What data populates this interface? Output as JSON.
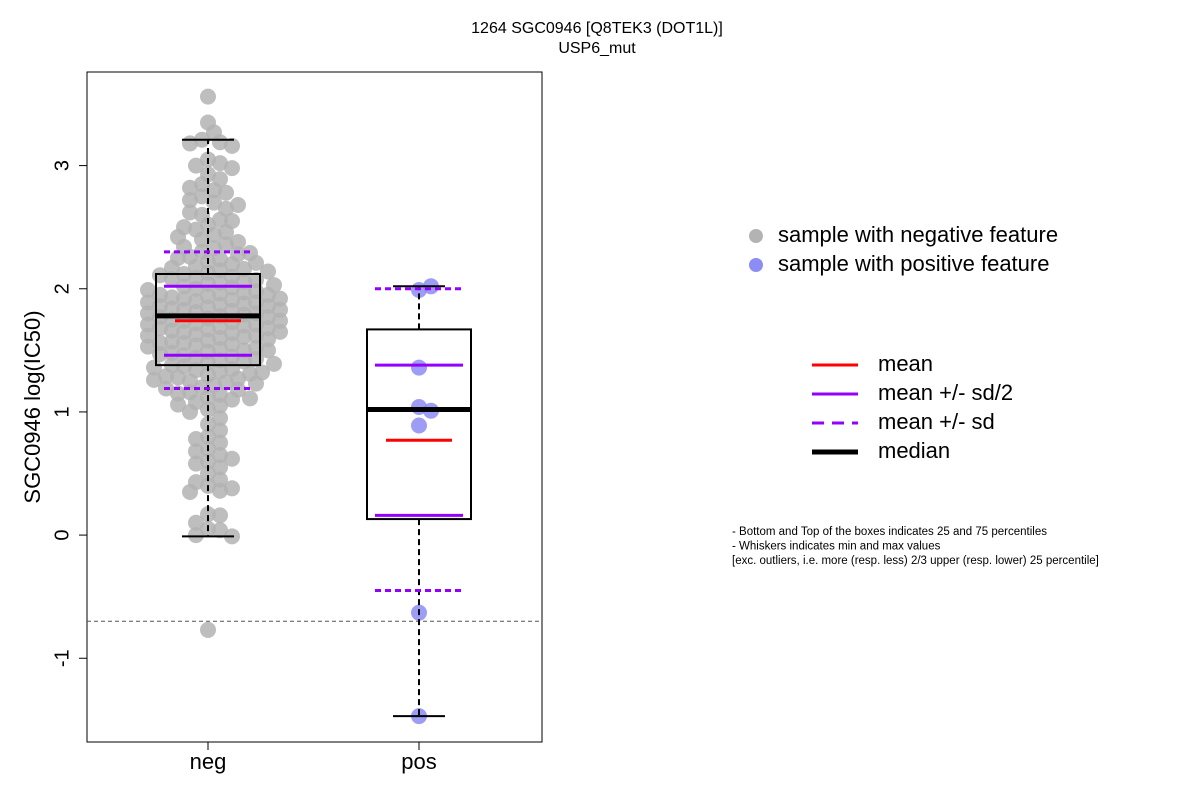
{
  "chart_data": {
    "type": "box",
    "title": "1264 SGC0946 [Q8TEK3 (DOT1L)]",
    "subtitle": "USP6_mut",
    "y_label": "SGC0946 log(IC50)",
    "categories": [
      "neg",
      "pos"
    ],
    "ylim": [
      -1.68,
      3.76
    ],
    "yticks": [
      -1,
      0,
      1,
      2,
      3
    ],
    "reference_line": -0.7,
    "series": [
      {
        "name": "sample with negative feature",
        "color": "#b3b3b3",
        "values": [
          3.56,
          3.35,
          3.27,
          3.21,
          3.19,
          3.18,
          3.16,
          3.05,
          3.02,
          3.0,
          2.98,
          2.93,
          2.89,
          2.85,
          2.82,
          2.8,
          2.78,
          2.75,
          2.72,
          2.7,
          1.02,
          1.05,
          1.08,
          1.1,
          1.12,
          1.14,
          1.16,
          1.18,
          1.2,
          1.22,
          1.24,
          1.25,
          1.27,
          1.28,
          1.3,
          1.31,
          1.33,
          1.34,
          1.35,
          1.37,
          1.38,
          1.4,
          1.41,
          1.42,
          1.44,
          1.45,
          1.46,
          1.48,
          1.49,
          1.5,
          1.51,
          1.52,
          1.54,
          1.55,
          1.56,
          1.57,
          1.58,
          1.6,
          1.61,
          1.62,
          1.63,
          1.64,
          1.65,
          1.66,
          1.67,
          1.68,
          1.69,
          1.7,
          1.71,
          1.72,
          1.73,
          1.74,
          1.75,
          1.76,
          1.77,
          1.78,
          1.79,
          1.8,
          1.81,
          1.82,
          1.83,
          1.84,
          1.85,
          1.86,
          1.87,
          1.88,
          1.89,
          1.9,
          1.91,
          1.92,
          1.93,
          1.94,
          1.95,
          1.96,
          1.97,
          1.98,
          2.0,
          2.01,
          2.02,
          2.04,
          2.05,
          2.06,
          2.08,
          2.09,
          2.1,
          2.12,
          2.13,
          2.15,
          2.16,
          2.18,
          2.2,
          2.22,
          2.24,
          2.26,
          2.28,
          2.3,
          2.33,
          2.36,
          2.4,
          2.44,
          2.48,
          2.52,
          2.56,
          2.6,
          2.65,
          0.95,
          1.0,
          1.06,
          1.11,
          1.15,
          1.19,
          1.23,
          1.26,
          1.29,
          1.32,
          1.36,
          1.39,
          1.43,
          1.47,
          1.5,
          1.53,
          1.56,
          1.59,
          1.62,
          1.65,
          1.68,
          1.71,
          1.74,
          1.77,
          1.8,
          1.83,
          1.86,
          1.89,
          1.92,
          1.95,
          1.99,
          2.03,
          2.07,
          2.11,
          2.14,
          2.17,
          2.21,
          2.25,
          2.29,
          2.34,
          2.38,
          2.42,
          2.46,
          2.5,
          2.55,
          2.62,
          2.68,
          0.9,
          0.85,
          0.8,
          0.78,
          0.75,
          0.7,
          0.68,
          0.65,
          0.62,
          0.6,
          0.58,
          0.55,
          0.5,
          0.45,
          0.43,
          0.4,
          0.38,
          0.36,
          0.35,
          0.17,
          0.16,
          0.1,
          0.05,
          0.04,
          0.0,
          -0.01,
          -0.77
        ],
        "q1": 1.38,
        "median": 1.78,
        "q3": 2.12,
        "mean": 1.74,
        "mean_minus_half_sd": 1.46,
        "mean_plus_half_sd": 2.02,
        "mean_minus_sd": 1.19,
        "mean_plus_sd": 2.3,
        "whisker_low": -0.01,
        "whisker_high": 3.21
      },
      {
        "name": "sample with positive feature",
        "color": "#8c8cf5",
        "values": [
          1.99,
          2.02,
          1.36,
          1.04,
          1.01,
          0.89,
          -0.63,
          -1.47
        ],
        "q1": 0.13,
        "median": 1.02,
        "q3": 1.67,
        "mean": 0.77,
        "mean_minus_half_sd": 0.16,
        "mean_plus_half_sd": 1.38,
        "mean_minus_sd": -0.45,
        "mean_plus_sd": 2.0,
        "whisker_low": -1.47,
        "whisker_high": 2.02
      }
    ],
    "stat_legend": [
      {
        "label": "mean",
        "color": "#ff0000",
        "style": "solid",
        "width": 3
      },
      {
        "label": "mean +/- sd/2",
        "color": "#9400ff",
        "style": "solid",
        "width": 3
      },
      {
        "label": "mean +/- sd",
        "color": "#9400ff",
        "style": "dashed",
        "width": 3
      },
      {
        "label": "median",
        "color": "#000000",
        "style": "solid",
        "width": 5
      }
    ],
    "notes": [
      "- Bottom and Top of the boxes indicates 25 and 75 percentiles",
      "- Whiskers indicates min and max values",
      "[exc. outliers, i.e. more (resp. less) 2/3 upper (resp. lower) 25 percentile]"
    ]
  }
}
